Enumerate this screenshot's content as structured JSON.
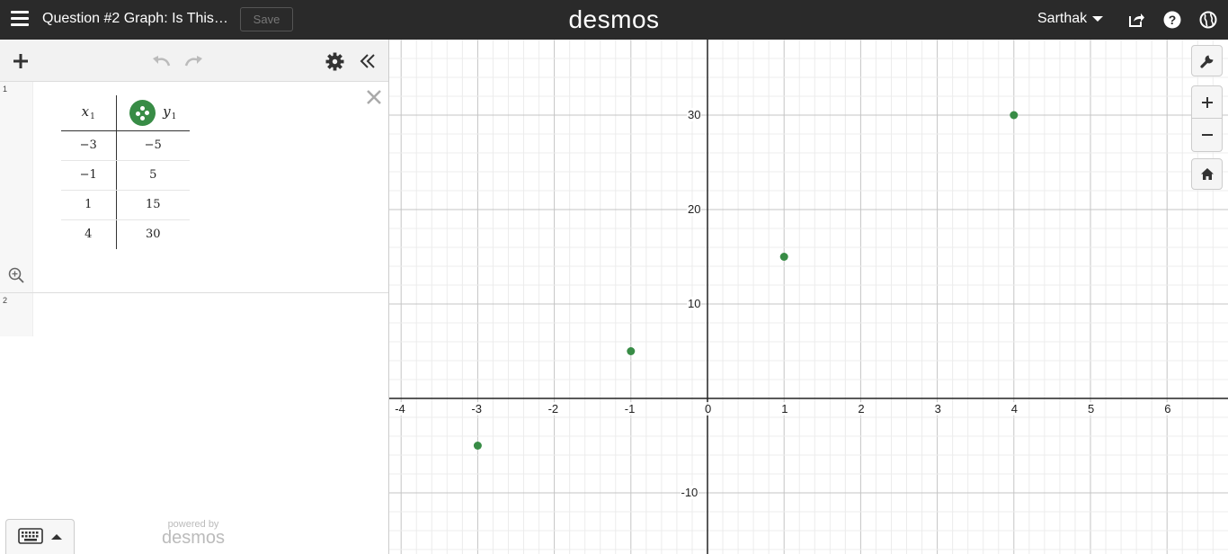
{
  "app": {
    "brand": "desmos"
  },
  "header": {
    "graph_title": "Question #2 Graph: Is This…",
    "save_label": "Save",
    "user_name": "Sarthak"
  },
  "expressions": [
    {
      "index": "1",
      "type": "table",
      "columns": [
        {
          "name": "x",
          "subscript": "1"
        },
        {
          "name": "y",
          "subscript": "1"
        }
      ],
      "rows": [
        {
          "x": "−3",
          "y": "−5"
        },
        {
          "x": "−1",
          "y": "5"
        },
        {
          "x": "1",
          "y": "15"
        },
        {
          "x": "4",
          "y": "30"
        }
      ],
      "point_color": "#388c46"
    },
    {
      "index": "2",
      "type": "empty"
    }
  ],
  "footer": {
    "powered_by": "powered by",
    "brand": "desmos"
  },
  "graph": {
    "x_ticks": [
      "-4",
      "-3",
      "-2",
      "-1",
      "0",
      "1",
      "2",
      "3",
      "4",
      "5",
      "6"
    ],
    "y_ticks": [
      "30",
      "20",
      "10",
      "-10"
    ],
    "points": [
      {
        "x": -3,
        "y": -5
      },
      {
        "x": -1,
        "y": 5
      },
      {
        "x": 1,
        "y": 15
      },
      {
        "x": 4,
        "y": 30
      }
    ],
    "point_color": "#388c46"
  },
  "icons": {
    "menu": "hamburger-icon",
    "share": "share-icon",
    "help": "help-icon",
    "language": "globe-icon",
    "add": "plus-icon",
    "undo": "undo-icon",
    "redo": "redo-icon",
    "settings": "gear-icon",
    "collapse": "double-chevron-left-icon",
    "delete": "close-icon",
    "zoom_fit": "zoom-fit-icon",
    "keypad": "keyboard-icon",
    "graph_settings": "wrench-icon",
    "zoom_in": "plus-icon",
    "zoom_out": "minus-icon",
    "default_view": "home-icon"
  }
}
